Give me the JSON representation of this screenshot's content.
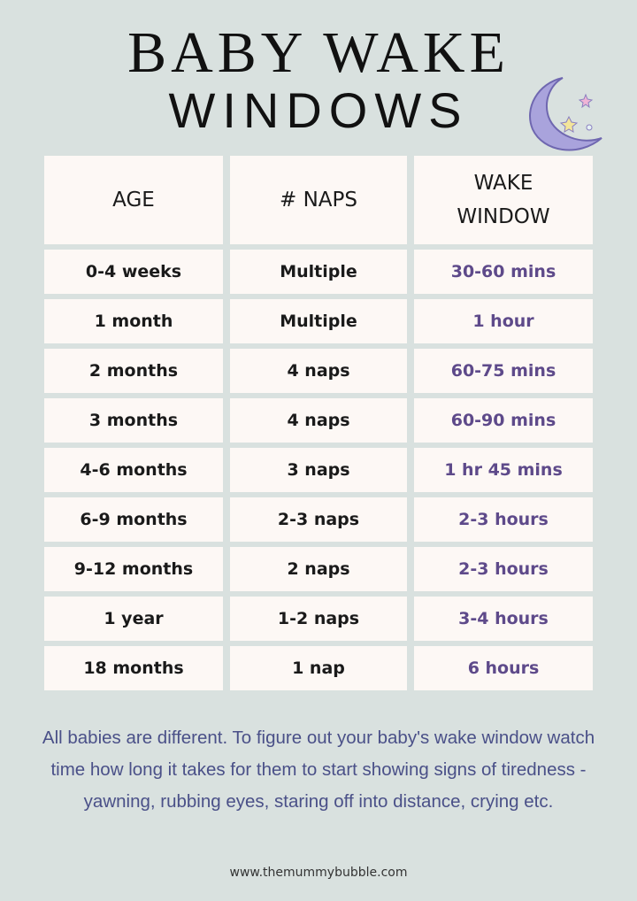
{
  "title": {
    "line1": "BABY WAKE",
    "line2": "WINDOWS"
  },
  "decor": {
    "icon": "crescent-moon-with-stars",
    "moon_color": "#a9a3dc"
  },
  "table": {
    "headers": [
      "AGE",
      "# NAPS",
      "WAKE WINDOW"
    ],
    "rows": [
      [
        "0-4 weeks",
        "Multiple",
        "30-60 mins"
      ],
      [
        "1 month",
        "Multiple",
        "1 hour"
      ],
      [
        "2 months",
        "4 naps",
        "60-75 mins"
      ],
      [
        "3 months",
        "4 naps",
        "60-90 mins"
      ],
      [
        "4-6 months",
        "3 naps",
        "1 hr 45 mins"
      ],
      [
        "6-9 months",
        "2-3 naps",
        "2-3 hours"
      ],
      [
        "9-12 months",
        "2 naps",
        "2-3 hours"
      ],
      [
        "1 year",
        "1-2 naps",
        "3-4 hours"
      ],
      [
        "18 months",
        "1 nap",
        "6 hours"
      ]
    ]
  },
  "note": "All babies are different. To figure out your baby's wake window watch time how long it takes for them to start showing signs of tiredness - yawning, rubbing eyes, staring off into distance, crying etc.",
  "footer": "www.themummybubble.com",
  "colors": {
    "background": "#d9e1df",
    "cell": "#fdf8f5",
    "wake_text": "#5e4a8a",
    "note_text": "#4a5088"
  }
}
